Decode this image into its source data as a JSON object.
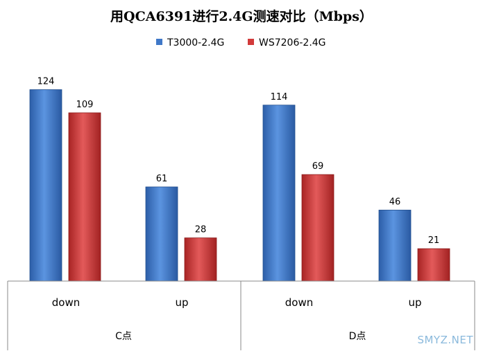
{
  "chart_data": {
    "type": "bar",
    "title": "用QCA6391进行2.4G测速对比（Mbps）",
    "groups": [
      {
        "label": "C点",
        "categories": [
          "down",
          "up"
        ]
      },
      {
        "label": "D点",
        "categories": [
          "down",
          "up"
        ]
      }
    ],
    "categories": [
      "down",
      "up",
      "down",
      "up"
    ],
    "series": [
      {
        "name": "T3000-2.4G",
        "color": "#3f78c8",
        "values": [
          124,
          61,
          114,
          46
        ]
      },
      {
        "name": "WS7206-2.4G",
        "color": "#d23a3a",
        "values": [
          109,
          28,
          69,
          21
        ]
      }
    ],
    "legend": "top",
    "grid": false,
    "ylim": [
      0,
      130
    ]
  },
  "watermark": "SMYZ.NET"
}
